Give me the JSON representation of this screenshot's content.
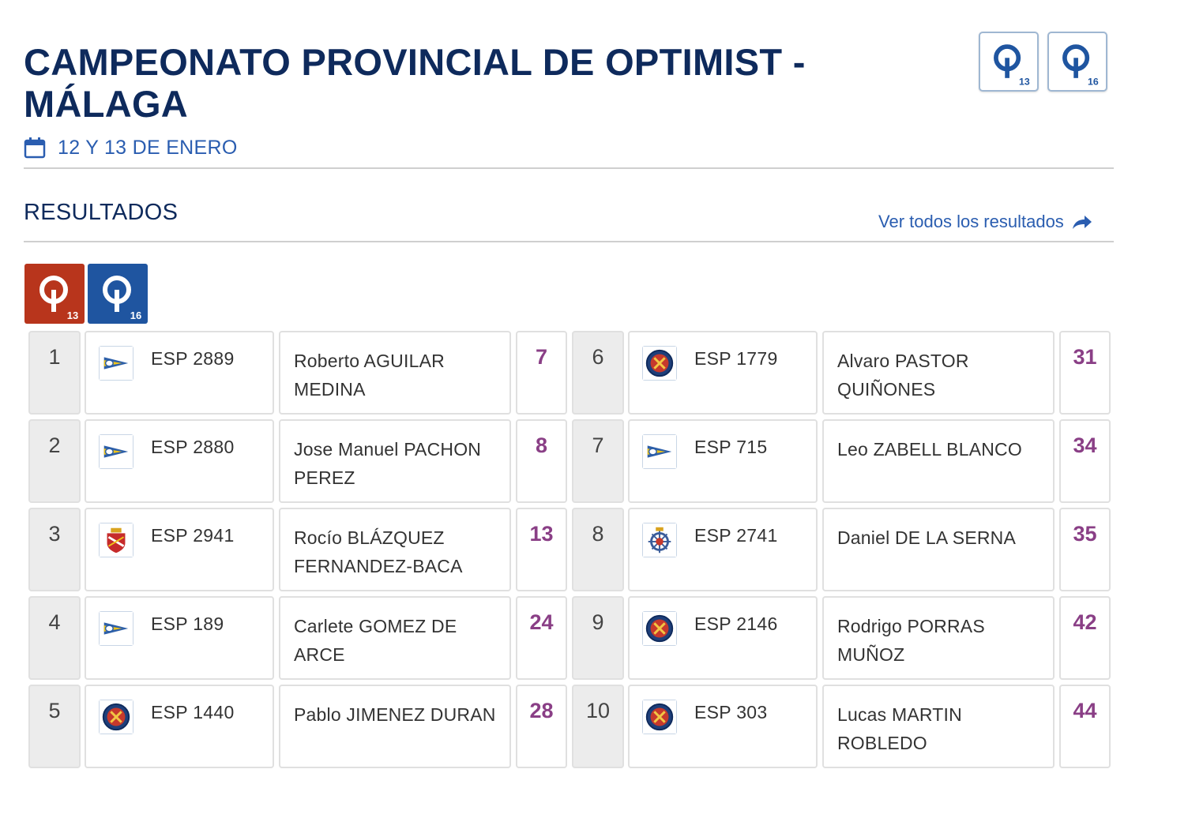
{
  "header": {
    "title": "CAMPEONATO PROVINCIAL DE OPTIMIST - MÁLAGA",
    "date": "12 Y 13 DE ENERO",
    "class_badges": [
      {
        "icon": "optimist-13-icon",
        "number": "13"
      },
      {
        "icon": "optimist-16-icon",
        "number": "16"
      }
    ]
  },
  "results": {
    "title": "RESULTADOS",
    "see_all": "Ver todos los resultados",
    "filters": [
      {
        "number": "13",
        "color": "#b8351c"
      },
      {
        "number": "16",
        "color": "#1f55a0"
      }
    ],
    "rows": [
      {
        "pos": "1",
        "club": "arrow-burgee-icon",
        "sail": "ESP 2889",
        "name": "Roberto AGUILAR MEDINA",
        "points": "7"
      },
      {
        "pos": "2",
        "club": "arrow-burgee-icon",
        "sail": "ESP 2880",
        "name": "Jose Manuel PACHON PEREZ",
        "points": "8"
      },
      {
        "pos": "3",
        "club": "royal-crest-icon",
        "sail": "ESP 2941",
        "name": "Rocío BLÁZQUEZ FERNANDEZ-BACA",
        "points": "13"
      },
      {
        "pos": "4",
        "club": "arrow-burgee-icon",
        "sail": "ESP 189",
        "name": "Carlete GOMEZ DE ARCE",
        "points": "24"
      },
      {
        "pos": "5",
        "club": "round-shield-icon",
        "sail": "ESP 1440",
        "name": "Pablo JIMENEZ DURAN",
        "points": "28"
      },
      {
        "pos": "6",
        "club": "round-shield-icon",
        "sail": "ESP 1779",
        "name": "Alvaro PASTOR QUIÑONES",
        "points": "31"
      },
      {
        "pos": "7",
        "club": "arrow-burgee-icon",
        "sail": "ESP 715",
        "name": "Leo ZABELL BLANCO",
        "points": "34"
      },
      {
        "pos": "8",
        "club": "ship-wheel-icon",
        "sail": "ESP 2741",
        "name": "Daniel DE LA SERNA",
        "points": "35"
      },
      {
        "pos": "9",
        "club": "round-shield-icon",
        "sail": "ESP 2146",
        "name": "Rodrigo PORRAS MUÑOZ",
        "points": "42"
      },
      {
        "pos": "10",
        "club": "round-shield-icon",
        "sail": "ESP 303",
        "name": "Lucas MARTIN ROBLEDO",
        "points": "44"
      }
    ]
  }
}
